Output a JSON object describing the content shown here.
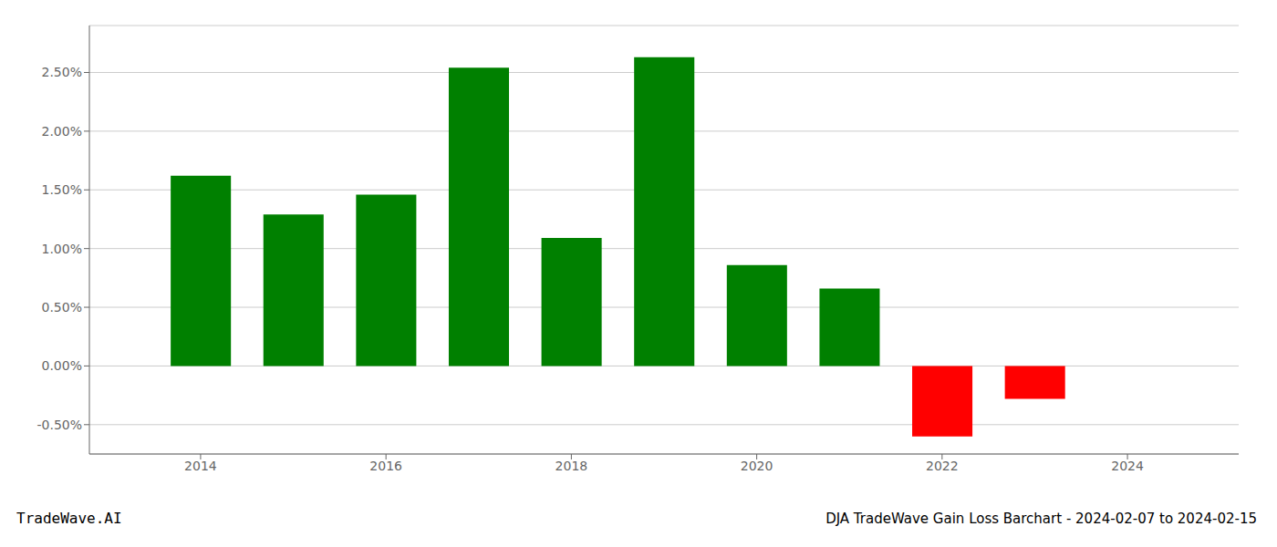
{
  "chart_data": {
    "type": "bar",
    "title": "DJA TradeWave Gain Loss Barchart - 2024-02-07 to 2024-02-15",
    "annotations": [
      "TradeWave.AI"
    ],
    "x": [
      2014,
      2015,
      2016,
      2017,
      2018,
      2019,
      2020,
      2021,
      2022,
      2023
    ],
    "values": [
      1.62,
      1.29,
      1.46,
      2.54,
      1.09,
      2.63,
      0.86,
      0.66,
      -0.6,
      -0.28
    ],
    "colors": [
      "#008000",
      "#008000",
      "#008000",
      "#008000",
      "#008000",
      "#008000",
      "#008000",
      "#008000",
      "#ff0000",
      "#ff0000"
    ],
    "xlim": [
      2012.8,
      2025.2
    ],
    "xticks": [
      2014,
      2016,
      2018,
      2020,
      2022,
      2024
    ],
    "ylim": [
      -0.75,
      2.9
    ],
    "yticks": [
      {
        "value": -0.5,
        "label": "-0.50%"
      },
      {
        "value": 0.0,
        "label": "0.00%"
      },
      {
        "value": 0.5,
        "label": "0.50%"
      },
      {
        "value": 1.0,
        "label": "1.00%"
      },
      {
        "value": 1.5,
        "label": "1.50%"
      },
      {
        "value": 2.0,
        "label": "2.00%"
      },
      {
        "value": 2.5,
        "label": "2.50%"
      }
    ],
    "grid": true
  }
}
